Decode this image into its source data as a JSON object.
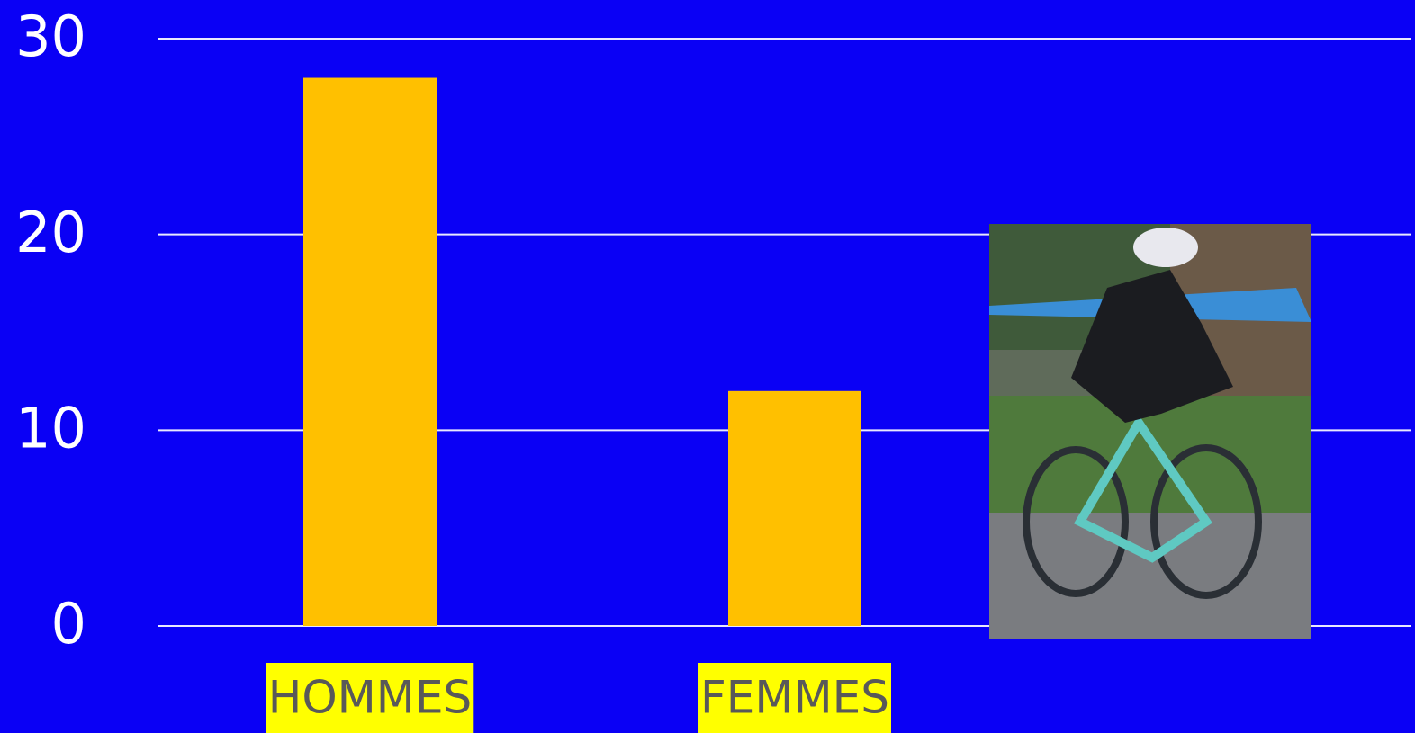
{
  "chart_data": {
    "type": "bar",
    "categories": [
      "HOMMES",
      "FEMMES"
    ],
    "values": [
      28,
      12
    ],
    "color": "#ffc000",
    "label_highlight": "#ffff00",
    "ylim": [
      0,
      30
    ],
    "yticks": [
      0,
      10,
      20,
      30
    ],
    "grid": true
  }
}
